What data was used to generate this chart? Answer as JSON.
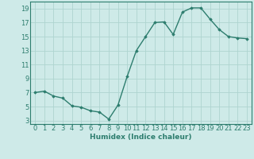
{
  "x": [
    0,
    1,
    2,
    3,
    4,
    5,
    6,
    7,
    8,
    9,
    10,
    11,
    12,
    13,
    14,
    15,
    16,
    17,
    18,
    19,
    20,
    21,
    22,
    23
  ],
  "y": [
    7.0,
    7.2,
    6.5,
    6.2,
    5.1,
    4.9,
    4.4,
    4.2,
    3.2,
    5.2,
    9.3,
    13.0,
    15.0,
    17.0,
    17.1,
    15.3,
    18.5,
    19.1,
    19.1,
    17.5,
    16.0,
    15.0,
    14.8,
    14.7
  ],
  "line_color": "#2d7d6e",
  "marker": "D",
  "markersize": 1.8,
  "bg_color": "#ceeae8",
  "grid_color": "#aed4d0",
  "xlabel": "Humidex (Indice chaleur)",
  "xlim": [
    -0.5,
    23.5
  ],
  "ylim": [
    2.5,
    20.0
  ],
  "yticks": [
    3,
    5,
    7,
    9,
    11,
    13,
    15,
    17,
    19
  ],
  "xticks": [
    0,
    1,
    2,
    3,
    4,
    5,
    6,
    7,
    8,
    9,
    10,
    11,
    12,
    13,
    14,
    15,
    16,
    17,
    18,
    19,
    20,
    21,
    22,
    23
  ],
  "xlabel_fontsize": 6.5,
  "tick_fontsize": 6.0,
  "linewidth": 1.0
}
